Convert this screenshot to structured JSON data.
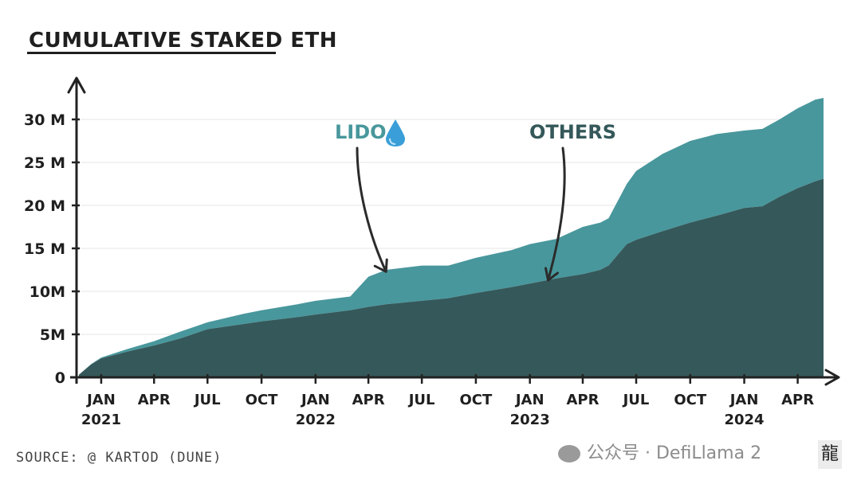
{
  "header": {
    "title": "CUMULATIVE STAKED ETH"
  },
  "footer": {
    "source": "SOURCE: @ KARTOD  (DUNE)"
  },
  "watermark": {
    "text": "公众号 · DefiLlama 2",
    "logo_char": "龍"
  },
  "colors": {
    "others": "#35585a",
    "lido": "#48979c",
    "axis": "#222222",
    "grid": "#e6e6e6"
  },
  "chart_data": {
    "type": "area",
    "title": "CUMULATIVE STAKED ETH",
    "xlabel": "",
    "ylabel": "",
    "ylim": [
      0,
      32
    ],
    "xlim": [
      "2020-11-20",
      "2024-05-15"
    ],
    "y_unit": "M",
    "grid": true,
    "yticks": [
      {
        "value": 0,
        "label": "0"
      },
      {
        "value": 5,
        "label": "5M"
      },
      {
        "value": 10,
        "label": "10M"
      },
      {
        "value": 15,
        "label": "15 M"
      },
      {
        "value": 20,
        "label": "20 M"
      },
      {
        "value": 25,
        "label": "25 M"
      },
      {
        "value": 30,
        "label": "30 M"
      }
    ],
    "xticks": [
      {
        "date": "2021-01-01",
        "label": "JAN",
        "year": "2021"
      },
      {
        "date": "2021-04-01",
        "label": "APR",
        "year": ""
      },
      {
        "date": "2021-07-01",
        "label": "JUL",
        "year": ""
      },
      {
        "date": "2021-10-01",
        "label": "OCT",
        "year": ""
      },
      {
        "date": "2022-01-01",
        "label": "JAN",
        "year": "2022"
      },
      {
        "date": "2022-04-01",
        "label": "APR",
        "year": ""
      },
      {
        "date": "2022-07-01",
        "label": "JUL",
        "year": ""
      },
      {
        "date": "2022-10-01",
        "label": "OCT",
        "year": ""
      },
      {
        "date": "2023-01-01",
        "label": "JAN",
        "year": "2023"
      },
      {
        "date": "2023-04-01",
        "label": "APR",
        "year": ""
      },
      {
        "date": "2023-07-01",
        "label": "JUL",
        "year": ""
      },
      {
        "date": "2023-10-01",
        "label": "OCT",
        "year": ""
      },
      {
        "date": "2024-01-01",
        "label": "JAN",
        "year": "2024"
      },
      {
        "date": "2024-04-01",
        "label": "APR",
        "year": ""
      }
    ],
    "x": [
      "2020-11-24",
      "2020-12-15",
      "2021-01-01",
      "2021-02-15",
      "2021-04-01",
      "2021-05-15",
      "2021-07-01",
      "2021-09-01",
      "2021-10-01",
      "2021-12-01",
      "2022-01-01",
      "2022-03-01",
      "2022-04-01",
      "2022-05-01",
      "2022-07-01",
      "2022-08-15",
      "2022-10-01",
      "2022-12-01",
      "2023-01-01",
      "2023-02-15",
      "2023-04-01",
      "2023-05-01",
      "2023-05-15",
      "2023-06-15",
      "2023-07-01",
      "2023-08-15",
      "2023-10-01",
      "2023-11-15",
      "2024-01-01",
      "2024-02-01",
      "2024-03-01",
      "2024-04-01",
      "2024-05-01",
      "2024-05-15"
    ],
    "series": [
      {
        "name": "OTHERS",
        "values": [
          0.3,
          1.5,
          2.2,
          3.0,
          3.7,
          4.5,
          5.6,
          6.2,
          6.5,
          7.0,
          7.3,
          7.8,
          8.2,
          8.5,
          8.9,
          9.2,
          9.8,
          10.5,
          10.9,
          11.5,
          12.0,
          12.5,
          13.0,
          15.5,
          16.0,
          17.0,
          18.0,
          18.8,
          19.7,
          19.9,
          21.0,
          22.0,
          22.8,
          23.1
        ]
      },
      {
        "name": "LIDO",
        "values": [
          0,
          0.05,
          0.1,
          0.3,
          0.5,
          0.8,
          0.8,
          1.2,
          1.3,
          1.5,
          1.6,
          1.6,
          3.5,
          4.0,
          4.1,
          3.8,
          4.1,
          4.3,
          4.6,
          4.6,
          5.5,
          5.5,
          5.5,
          7.0,
          8.0,
          9.0,
          9.5,
          9.5,
          9.0,
          9.0,
          9.0,
          9.3,
          9.5,
          9.4
        ]
      }
    ],
    "annotations": [
      {
        "text": "LIDO",
        "series": "LIDO",
        "date": "2022-05-01",
        "value": 12.3
      },
      {
        "text": "OTHERS",
        "series": "OTHERS",
        "date": "2023-02-01",
        "value": 11.3
      }
    ]
  }
}
